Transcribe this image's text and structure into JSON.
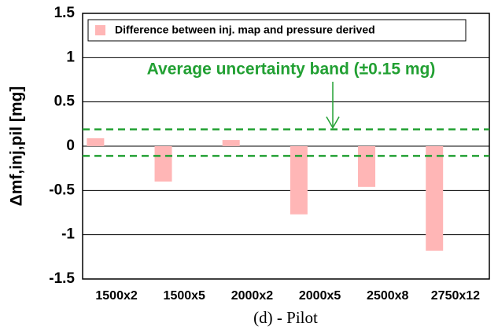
{
  "chart_data": {
    "type": "bar",
    "categories": [
      "1500x2",
      "1500x5",
      "2000x2",
      "2000x5",
      "2500x8",
      "2750x12"
    ],
    "series": [
      {
        "name": "Difference between inj. map and pressure derived",
        "color": "#ffb6b6",
        "values": [
          0.09,
          -0.4,
          0.07,
          -0.77,
          -0.46,
          -1.18
        ]
      }
    ],
    "ylim": [
      -1.5,
      1.5
    ],
    "yticks": [
      -1.5,
      -1,
      -0.5,
      0,
      0.5,
      1,
      1.5
    ],
    "grid": true,
    "y_label": "Δmf,inj,pil [mg]",
    "x_label": "(d) - Pilot",
    "annotation": "Average uncertainty band (±0.15 mg)",
    "reference_lines": [
      0.19,
      -0.11
    ],
    "reference_color": "#22a033",
    "legend": "top"
  }
}
